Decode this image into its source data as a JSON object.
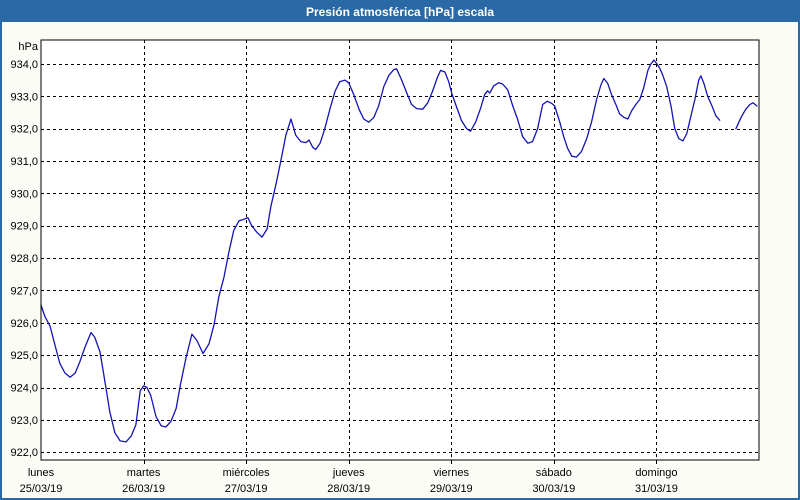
{
  "window": {
    "title": "Presión atmosférica [hPa] escala"
  },
  "colors": {
    "header_bg": "#2a69a5",
    "border": "#2a69a5",
    "page_bg": "#fbfcf6",
    "plot_bg": "#ffffff",
    "grid": "#000000",
    "axis": "#000000",
    "label_text": "#000000",
    "title_text": "#ffffff",
    "line": "#1414b4"
  },
  "y_axis": {
    "unit_label": "hPa",
    "ticks": [
      {
        "value": 934,
        "label": "934,0"
      },
      {
        "value": 933,
        "label": "933,0"
      },
      {
        "value": 932,
        "label": "932,0"
      },
      {
        "value": 931,
        "label": "931,0"
      },
      {
        "value": 930,
        "label": "930,0"
      },
      {
        "value": 929,
        "label": "929,0"
      },
      {
        "value": 928,
        "label": "928,0"
      },
      {
        "value": 927,
        "label": "927,0"
      },
      {
        "value": 926,
        "label": "926,0"
      },
      {
        "value": 925,
        "label": "925,0"
      },
      {
        "value": 924,
        "label": "924,0"
      },
      {
        "value": 923,
        "label": "923,0"
      },
      {
        "value": 922,
        "label": "922,0"
      }
    ]
  },
  "x_axis": {
    "days": [
      {
        "name": "lunes",
        "date": "25/03/19"
      },
      {
        "name": "martes",
        "date": "26/03/19"
      },
      {
        "name": "miércoles",
        "date": "27/03/19"
      },
      {
        "name": "jueves",
        "date": "28/03/19"
      },
      {
        "name": "viernes",
        "date": "29/03/19"
      },
      {
        "name": "sábado",
        "date": "30/03/19"
      },
      {
        "name": "domingo",
        "date": "31/03/19"
      }
    ]
  },
  "chart_data": {
    "type": "line",
    "title": "Presión atmosférica [hPa] escala",
    "xlabel": "",
    "ylabel": "hPa",
    "x_unit": "hours since lunes 25/03/19 00:00",
    "x_range_hours": [
      0,
      168
    ],
    "ylim": [
      921.76,
      934.74
    ],
    "grid": "dashed",
    "legend": "none",
    "note": "single series; short data gap Sunday afternoon between hours 158.8 and 162.6",
    "segments": [
      [
        [
          0.0,
          926.55
        ],
        [
          0.9,
          926.2
        ],
        [
          2.1,
          925.9
        ],
        [
          3.3,
          925.3
        ],
        [
          4.4,
          924.75
        ],
        [
          5.6,
          924.45
        ],
        [
          6.8,
          924.32
        ],
        [
          8.0,
          924.45
        ],
        [
          9.1,
          924.8
        ],
        [
          10.3,
          925.25
        ],
        [
          11.7,
          925.7
        ],
        [
          12.6,
          925.55
        ],
        [
          13.8,
          925.1
        ],
        [
          15.0,
          924.15
        ],
        [
          16.1,
          923.25
        ],
        [
          17.3,
          922.6
        ],
        [
          18.5,
          922.35
        ],
        [
          19.9,
          922.32
        ],
        [
          21.1,
          922.5
        ],
        [
          22.2,
          922.85
        ],
        [
          23.2,
          923.9
        ],
        [
          24.0,
          924.05
        ],
        [
          24.8,
          924.0
        ],
        [
          25.7,
          923.75
        ],
        [
          26.9,
          923.1
        ],
        [
          28.1,
          922.82
        ],
        [
          29.2,
          922.78
        ],
        [
          30.4,
          922.95
        ],
        [
          31.6,
          923.35
        ],
        [
          32.7,
          924.15
        ],
        [
          33.9,
          924.9
        ],
        [
          35.3,
          925.65
        ],
        [
          36.5,
          925.45
        ],
        [
          37.9,
          925.05
        ],
        [
          39.3,
          925.35
        ],
        [
          40.5,
          925.95
        ],
        [
          41.6,
          926.8
        ],
        [
          42.8,
          927.4
        ],
        [
          44.0,
          928.2
        ],
        [
          45.1,
          928.85
        ],
        [
          46.3,
          929.15
        ],
        [
          47.5,
          929.2
        ],
        [
          48.4,
          929.25
        ],
        [
          49.3,
          929.0
        ],
        [
          50.5,
          928.8
        ],
        [
          51.7,
          928.65
        ],
        [
          52.9,
          928.9
        ],
        [
          53.8,
          929.6
        ],
        [
          55.0,
          930.3
        ],
        [
          56.1,
          931.0
        ],
        [
          57.3,
          931.8
        ],
        [
          58.5,
          932.3
        ],
        [
          59.6,
          931.8
        ],
        [
          60.8,
          931.6
        ],
        [
          62.0,
          931.57
        ],
        [
          62.7,
          931.65
        ],
        [
          63.6,
          931.42
        ],
        [
          64.3,
          931.36
        ],
        [
          65.3,
          931.55
        ],
        [
          66.4,
          932.0
        ],
        [
          67.6,
          932.6
        ],
        [
          68.8,
          933.15
        ],
        [
          69.9,
          933.45
        ],
        [
          71.1,
          933.5
        ],
        [
          72.0,
          933.42
        ],
        [
          73.2,
          933.05
        ],
        [
          74.4,
          932.6
        ],
        [
          75.5,
          932.3
        ],
        [
          76.7,
          932.2
        ],
        [
          77.9,
          932.35
        ],
        [
          79.0,
          932.7
        ],
        [
          80.2,
          933.3
        ],
        [
          81.4,
          933.65
        ],
        [
          82.5,
          933.82
        ],
        [
          83.2,
          933.85
        ],
        [
          84.4,
          933.5
        ],
        [
          85.6,
          933.1
        ],
        [
          86.7,
          932.75
        ],
        [
          87.9,
          932.62
        ],
        [
          89.3,
          932.6
        ],
        [
          90.5,
          932.8
        ],
        [
          91.6,
          933.15
        ],
        [
          92.8,
          933.6
        ],
        [
          93.5,
          933.8
        ],
        [
          94.5,
          933.75
        ],
        [
          95.4,
          933.45
        ],
        [
          96.1,
          933.1
        ],
        [
          97.3,
          932.65
        ],
        [
          98.4,
          932.25
        ],
        [
          99.6,
          932.0
        ],
        [
          100.5,
          931.92
        ],
        [
          101.7,
          932.2
        ],
        [
          102.9,
          932.65
        ],
        [
          103.8,
          933.05
        ],
        [
          104.5,
          933.17
        ],
        [
          105.0,
          933.1
        ],
        [
          105.9,
          933.32
        ],
        [
          107.1,
          933.42
        ],
        [
          108.0,
          933.38
        ],
        [
          109.2,
          933.2
        ],
        [
          110.4,
          932.7
        ],
        [
          111.5,
          932.3
        ],
        [
          112.7,
          931.75
        ],
        [
          113.9,
          931.55
        ],
        [
          115.0,
          931.6
        ],
        [
          116.2,
          932.0
        ],
        [
          117.4,
          932.75
        ],
        [
          118.5,
          932.85
        ],
        [
          119.5,
          932.78
        ],
        [
          120.2,
          932.7
        ],
        [
          121.4,
          932.2
        ],
        [
          122.3,
          931.75
        ],
        [
          123.2,
          931.4
        ],
        [
          124.2,
          931.15
        ],
        [
          125.3,
          931.12
        ],
        [
          126.5,
          931.3
        ],
        [
          127.7,
          931.7
        ],
        [
          128.8,
          932.2
        ],
        [
          130.0,
          932.9
        ],
        [
          131.0,
          933.35
        ],
        [
          131.7,
          933.55
        ],
        [
          132.6,
          933.4
        ],
        [
          133.5,
          933.05
        ],
        [
          134.5,
          932.75
        ],
        [
          135.4,
          932.45
        ],
        [
          136.4,
          932.35
        ],
        [
          137.3,
          932.3
        ],
        [
          138.2,
          932.55
        ],
        [
          139.2,
          932.75
        ],
        [
          140.1,
          932.9
        ],
        [
          141.0,
          933.25
        ],
        [
          142.0,
          933.8
        ],
        [
          142.7,
          934.0
        ],
        [
          143.4,
          934.12
        ],
        [
          144.1,
          934.0
        ],
        [
          144.8,
          933.87
        ],
        [
          145.5,
          933.65
        ],
        [
          146.4,
          933.3
        ],
        [
          147.4,
          932.7
        ],
        [
          148.3,
          932.0
        ],
        [
          149.2,
          931.7
        ],
        [
          150.2,
          931.62
        ],
        [
          151.1,
          931.85
        ],
        [
          152.0,
          932.35
        ],
        [
          153.0,
          932.9
        ],
        [
          153.9,
          933.5
        ],
        [
          154.4,
          933.63
        ],
        [
          155.1,
          933.4
        ],
        [
          156.0,
          933.0
        ],
        [
          157.0,
          932.7
        ],
        [
          157.9,
          932.4
        ],
        [
          158.8,
          932.26
        ]
      ],
      [
        [
          162.6,
          932.0
        ],
        [
          163.8,
          932.35
        ],
        [
          164.9,
          932.6
        ],
        [
          165.9,
          932.75
        ],
        [
          166.6,
          932.8
        ],
        [
          167.5,
          932.7
        ]
      ]
    ]
  }
}
